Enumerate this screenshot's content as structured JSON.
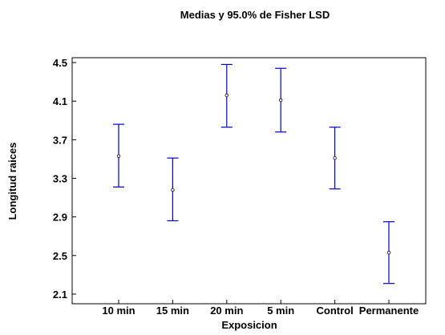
{
  "chart_data": {
    "type": "errorbar",
    "title": "Medias y 95.0% de Fisher LSD",
    "xlabel": "Exposicion",
    "ylabel": "Longitud raices",
    "categories": [
      "10 min",
      "15 min",
      "20 min",
      "5 min",
      "Control",
      "Permanente"
    ],
    "means": [
      3.53,
      3.18,
      4.16,
      4.11,
      3.51,
      2.53
    ],
    "lower": [
      3.21,
      2.86,
      3.83,
      3.78,
      3.19,
      2.21
    ],
    "upper": [
      3.86,
      3.51,
      4.48,
      4.44,
      3.83,
      2.85
    ],
    "ylim": [
      2.0,
      4.55
    ],
    "yticks": [
      2.1,
      2.5,
      2.9,
      3.3,
      3.7,
      4.1,
      4.5
    ],
    "ytick_labels": [
      "2.1",
      "2.5",
      "2.9",
      "3.3",
      "3.7",
      "4.1",
      "4.5"
    ],
    "grid": false,
    "colors": {
      "errorbar": "#0000cc",
      "mean_marker": "#000000",
      "axis": "#000000"
    }
  }
}
